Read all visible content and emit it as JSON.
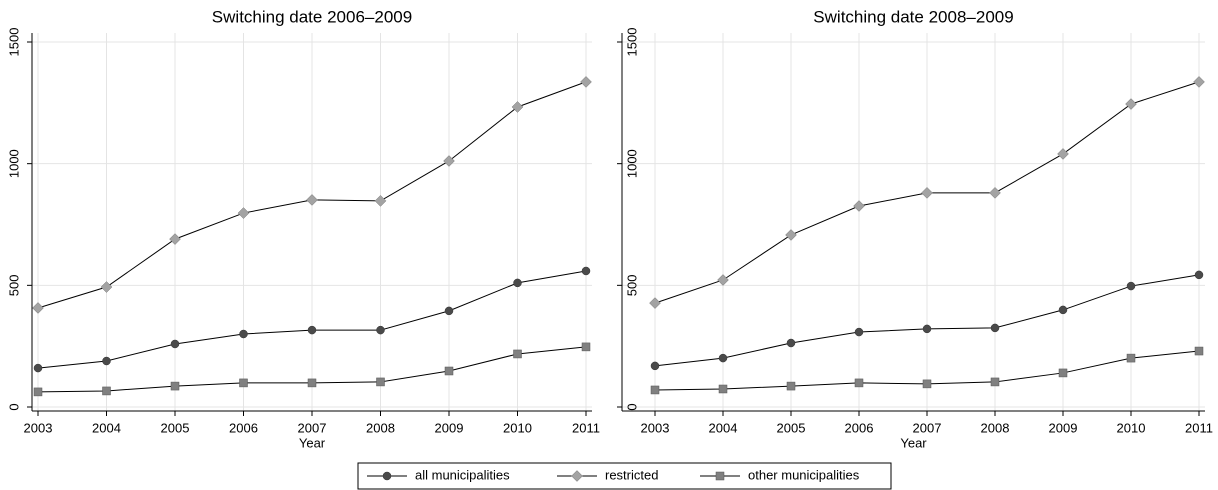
{
  "chart_data": [
    {
      "type": "line",
      "title": "Switching date 2006–2009",
      "x_label": "Year",
      "x": [
        2003,
        2004,
        2005,
        2006,
        2007,
        2008,
        2009,
        2010,
        2011
      ],
      "xlim": [
        2003,
        2011
      ],
      "xticks": [
        2003,
        2004,
        2005,
        2006,
        2007,
        2008,
        2009,
        2010,
        2011
      ],
      "ylim": [
        0,
        1500
      ],
      "yticks": [
        0,
        500,
        1000,
        1500
      ],
      "grid": true,
      "series": [
        {
          "name": "all municipalities",
          "color": "#4a4a4a",
          "marker": "circle",
          "values": [
            160,
            189,
            259,
            300,
            316,
            316,
            395,
            510,
            559
          ]
        },
        {
          "name": "restricted",
          "color": "#a3a3a3",
          "marker": "diamond",
          "values": [
            407,
            493,
            690,
            797,
            851,
            847,
            1011,
            1233,
            1336
          ]
        },
        {
          "name": "other municipalities",
          "color": "#808080",
          "marker": "square",
          "values": [
            62,
            66,
            86,
            99,
            99,
            103,
            148,
            218,
            247
          ]
        }
      ]
    },
    {
      "type": "line",
      "title": "Switching date 2008–2009",
      "x_label": "Year",
      "x": [
        2003,
        2004,
        2005,
        2006,
        2007,
        2008,
        2009,
        2010,
        2011
      ],
      "xlim": [
        2003,
        2011
      ],
      "xticks": [
        2003,
        2004,
        2005,
        2006,
        2007,
        2008,
        2009,
        2010,
        2011
      ],
      "ylim": [
        0,
        1500
      ],
      "yticks": [
        0,
        500,
        1000,
        1500
      ],
      "grid": true,
      "series": [
        {
          "color": "#4a4a4a",
          "marker": "circle",
          "values": [
            169,
            201,
            263,
            308,
            321,
            325,
            399,
            497,
            543
          ]
        },
        {
          "color": "#a3a3a3",
          "marker": "diamond",
          "values": [
            427,
            522,
            707,
            826,
            880,
            880,
            1040,
            1245,
            1336
          ]
        },
        {
          "color": "#808080",
          "marker": "square",
          "values": [
            70,
            74,
            86,
            99,
            95,
            103,
            140,
            201,
            230
          ]
        }
      ]
    }
  ]
}
